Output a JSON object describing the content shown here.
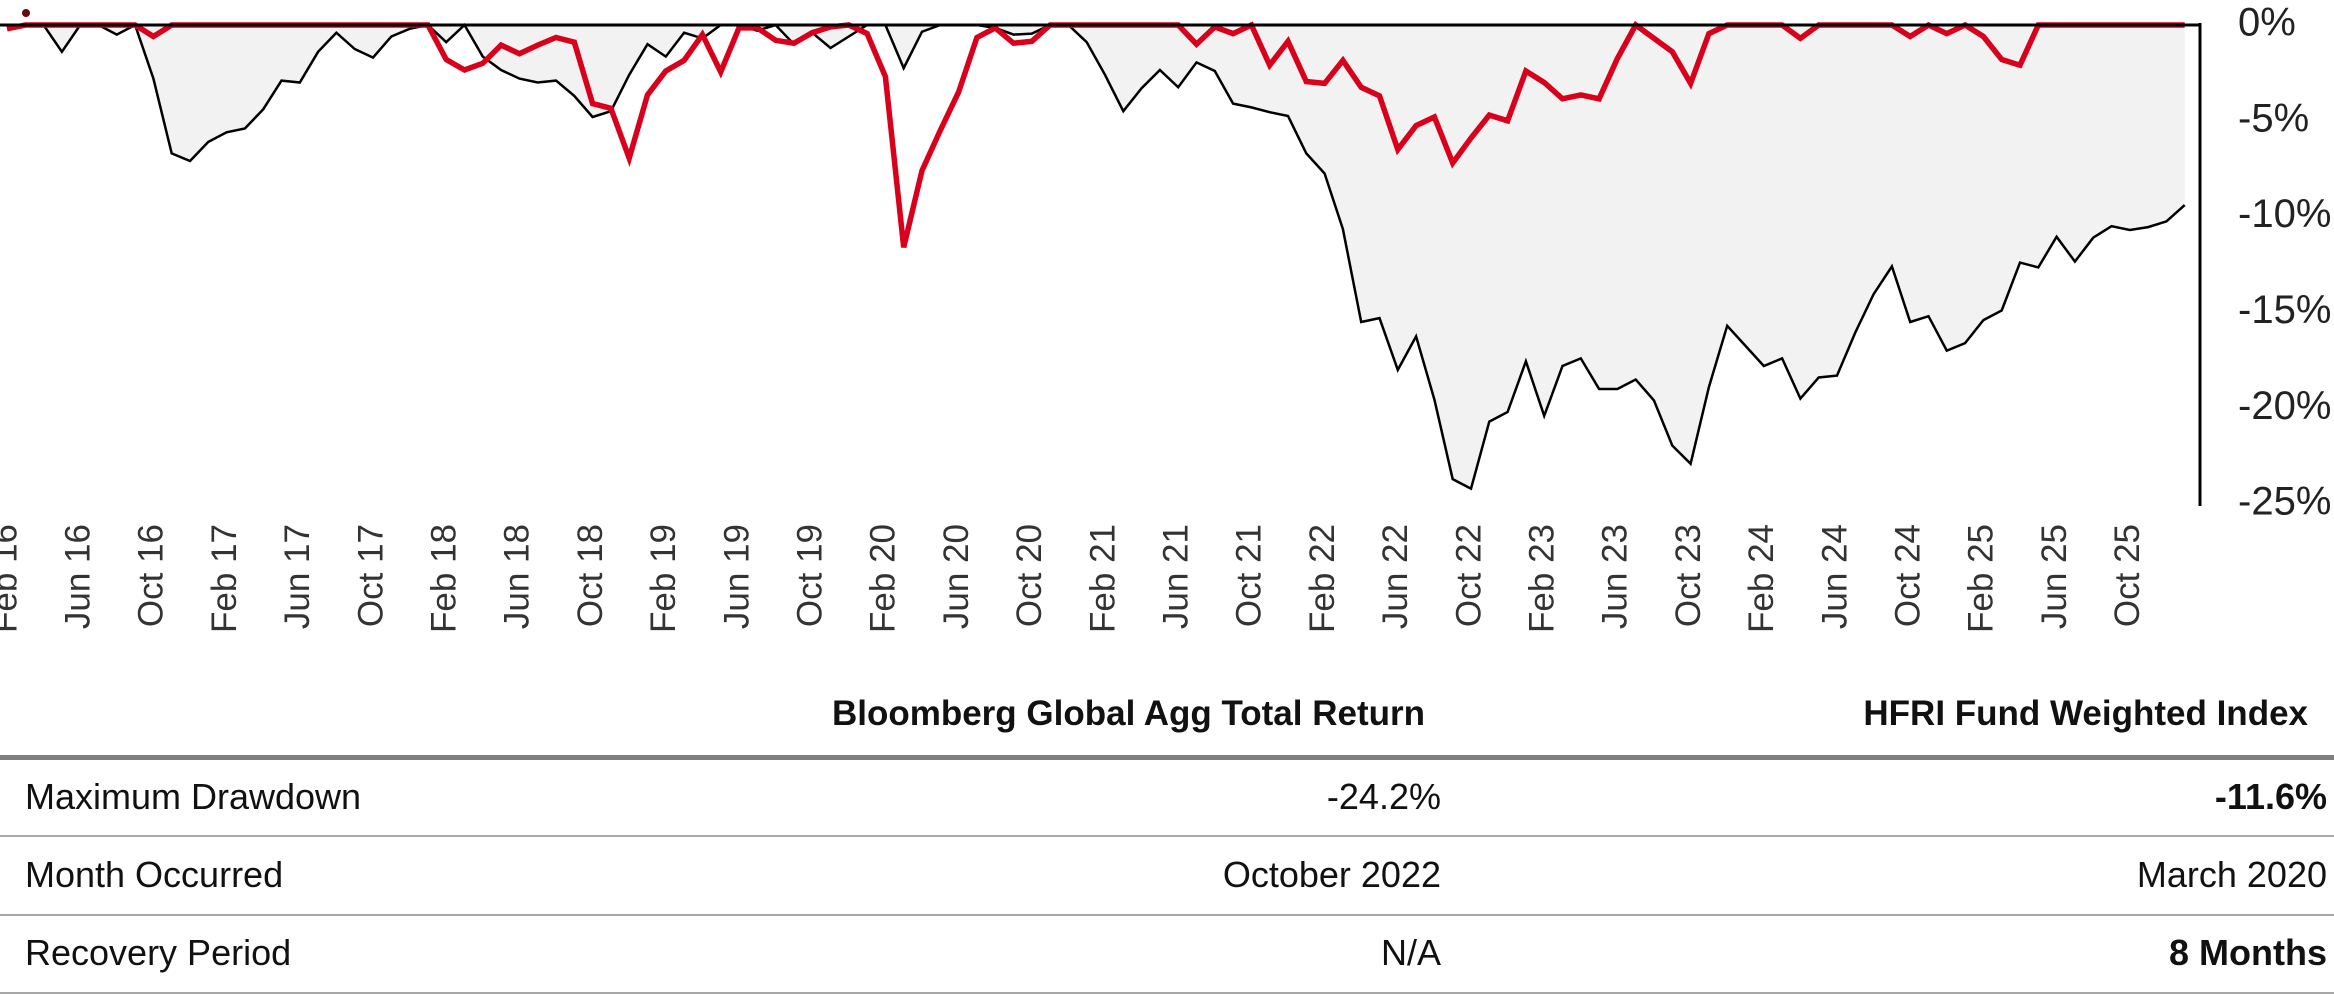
{
  "chart_data": {
    "type": "area",
    "x_start": "2016-02",
    "frequency": "monthly",
    "x_tick_labels": [
      "Feb 16",
      "Jun 16",
      "Oct 16",
      "Feb 17",
      "Jun 17",
      "Oct 17",
      "Feb 18",
      "Jun 18",
      "Oct 18",
      "Feb 19",
      "Jun 19",
      "Oct 19",
      "Feb 20",
      "Jun 20",
      "Oct 20",
      "Feb 21",
      "Jun 21",
      "Oct 21",
      "Feb 22",
      "Jun 22",
      "Oct 22",
      "Feb 23",
      "Jun 23",
      "Oct 23",
      "Feb 24",
      "Jun 24",
      "Oct 24",
      "Feb 25",
      "Jun 25",
      "Oct 25"
    ],
    "y_tick_labels": [
      "0%",
      "-5%",
      "-10%",
      "-15%",
      "-20%",
      "-25%"
    ],
    "y_ticks": [
      0,
      -5,
      -10,
      -15,
      -20,
      -25
    ],
    "ylim": [
      -25,
      0
    ],
    "y_axis_position": "right",
    "grid": false,
    "legend": "none",
    "series": [
      {
        "name": "Bloomberg Global Agg Total Return",
        "style": "area",
        "line_color": "#000000",
        "fill_color": "#f2f2f2",
        "values": [
          0,
          0,
          0,
          -1.4,
          0,
          0,
          -0.5,
          0,
          -2.8,
          -6.7,
          -7.1,
          -6.1,
          -5.6,
          -5.4,
          -4.4,
          -2.9,
          -3.0,
          -1.4,
          -0.4,
          -1.25,
          -1.7,
          -0.6,
          -0.2,
          0,
          -0.9,
          0,
          -1.65,
          -2.35,
          -2.8,
          -3.0,
          -2.9,
          -3.7,
          -4.8,
          -4.5,
          -2.6,
          -1.0,
          -1.65,
          -0.4,
          -0.7,
          0,
          0,
          -0.3,
          0,
          -1.0,
          -0.4,
          -1.2,
          -0.6,
          0,
          0,
          -2.25,
          -0.35,
          0,
          0,
          0,
          -0.15,
          -0.5,
          -0.45,
          0,
          0,
          -0.9,
          -2.6,
          -4.5,
          -3.3,
          -2.35,
          -3.25,
          -1.95,
          -2.4,
          -4.1,
          -4.3,
          -4.55,
          -4.75,
          -6.7,
          -7.75,
          -10.65,
          -15.5,
          -15.3,
          -18.0,
          -16.25,
          -19.55,
          -23.7,
          -24.2,
          -20.7,
          -20.2,
          -17.55,
          -20.4,
          -17.8,
          -17.4,
          -19.0,
          -19.0,
          -18.5,
          -19.6,
          -21.95,
          -22.9,
          -18.9,
          -15.7,
          -16.75,
          -17.8,
          -17.4,
          -19.5,
          -18.4,
          -18.3,
          -16.05,
          -14.05,
          -12.6,
          -15.5,
          -15.2,
          -17.0,
          -16.6,
          -15.4,
          -14.9,
          -12.4,
          -12.65,
          -11.05,
          -12.35,
          -11.1,
          -10.5,
          -10.7,
          -10.55,
          -10.25,
          -9.4
        ]
      },
      {
        "name": "HFRI Fund Weighted Index",
        "style": "line",
        "line_color": "#d9001b",
        "values": [
          -0.2,
          0,
          0,
          0,
          0,
          0,
          0,
          0,
          -0.6,
          0,
          0,
          0,
          0,
          0,
          0,
          0,
          0,
          0,
          0,
          0,
          0,
          0,
          0,
          0,
          -1.8,
          -2.35,
          -2.0,
          -1.05,
          -1.5,
          -1.05,
          -0.65,
          -0.9,
          -4.1,
          -4.35,
          -6.95,
          -3.65,
          -2.4,
          -1.85,
          -0.5,
          -2.45,
          -0.15,
          -0.15,
          -0.8,
          -0.95,
          -0.4,
          -0.1,
          0,
          -0.45,
          -2.7,
          -11.6,
          -7.6,
          -5.5,
          -3.5,
          -0.65,
          -0.15,
          -0.95,
          -0.85,
          0,
          0,
          0,
          0,
          0,
          0,
          0,
          0,
          -1.0,
          -0.1,
          -0.45,
          0,
          -2.1,
          -0.85,
          -2.95,
          -3.05,
          -1.85,
          -3.25,
          -3.7,
          -6.5,
          -5.25,
          -4.8,
          -7.2,
          -5.9,
          -4.7,
          -5.0,
          -2.4,
          -3.0,
          -3.85,
          -3.65,
          -3.85,
          -1.75,
          0,
          -0.7,
          -1.4,
          -3.05,
          -0.45,
          0,
          0,
          0,
          0,
          -0.7,
          0,
          0,
          0,
          0,
          0,
          -0.6,
          0,
          -0.45,
          0,
          -0.6,
          -1.8,
          -2.1,
          0,
          0,
          0,
          0,
          0,
          0,
          0,
          0,
          0
        ]
      }
    ],
    "marker_color": "#6b0a0a"
  },
  "table": {
    "columns": [
      "Bloomberg Global Agg Total Return",
      "HFRI Fund Weighted Index"
    ],
    "rows": [
      {
        "label": "Maximum Drawdown",
        "values": [
          "-24.2%",
          "-11.6%"
        ],
        "bold": [
          false,
          true
        ]
      },
      {
        "label": "Month Occurred",
        "values": [
          "October 2022",
          "March 2020"
        ],
        "bold": [
          false,
          false
        ]
      },
      {
        "label": "Recovery Period",
        "values": [
          "N/A",
          "8 Months"
        ],
        "bold": [
          false,
          true
        ]
      }
    ]
  }
}
